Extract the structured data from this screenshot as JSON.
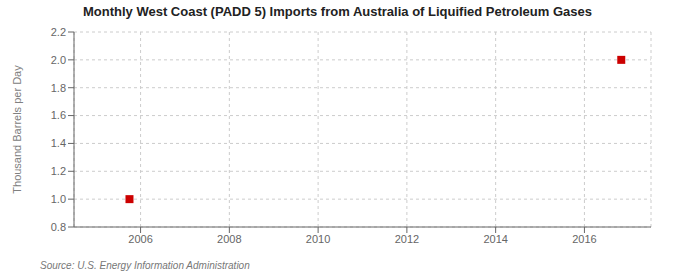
{
  "chart_data": {
    "type": "scatter",
    "title": "Monthly West Coast (PADD 5) Imports from Australia of Liquified Petroleum Gases",
    "y_label": "Thousand Barrels per Day",
    "source": "Source: U.S. Energy Information Administration",
    "x": [
      2005.75,
      2016.83
    ],
    "values": [
      1.0,
      2.0
    ],
    "color": "#cc0000",
    "marker": "square",
    "xlim": [
      2004.5,
      2017.5
    ],
    "ylim": [
      0.8,
      2.2
    ],
    "xticks": [
      2006,
      2008,
      2010,
      2012,
      2014,
      2016
    ],
    "yticks": [
      0.8,
      {
        "value": 1.0,
        "label": "1.0"
      },
      1.2,
      1.4,
      1.6,
      1.8,
      {
        "value": 2.0,
        "label": "2.0"
      },
      2.2
    ],
    "grid": true
  }
}
